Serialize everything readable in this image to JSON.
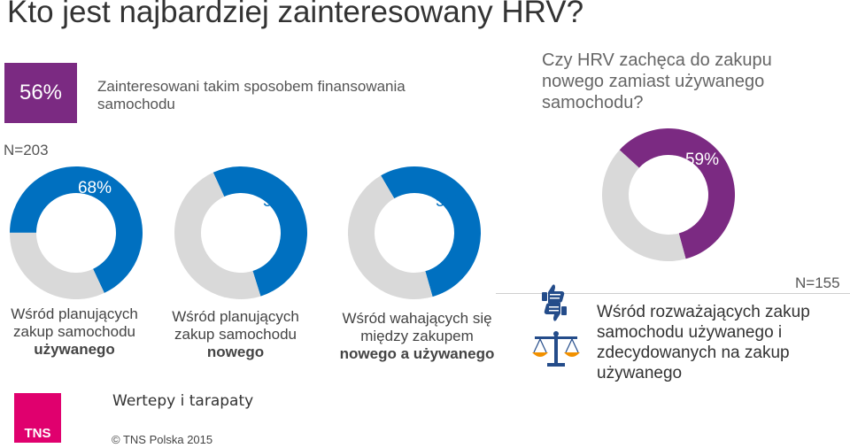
{
  "title": "Kto jest najbardziej zainteresowany HRV?",
  "badge": {
    "value": "56%",
    "text": "Zainteresowani takim sposobem finansowania samochodu"
  },
  "question": "Czy HRV zachęca do zakupu nowego zamiast używanego samochodu?",
  "n_left": "N=203",
  "n_right": "N=155",
  "captions": {
    "c1_line1": "Wśród planujących zakup samochodu",
    "c1_bold": "używanego",
    "c2_line1": "Wśród planujących zakup samochodu",
    "c2_bold": "nowego",
    "c3_line1": "Wśród wahających się między zakupem",
    "c3_bold": "nowego a używanego",
    "c4": "Wśród rozważających zakup samochodu używanego i zdecydowanych na zakup używanego"
  },
  "subtitle": "Wertepy i tarapaty",
  "copyright": "© TNS Polska 2015",
  "logo": "TNS",
  "colors": {
    "blue": "#0070C0",
    "purple": "#7B2A82",
    "grey": "#D9D9D9",
    "pink": "#E0006E"
  },
  "icons": [
    "thumbs-up-down-icon",
    "scales-icon"
  ],
  "chart_data": [
    {
      "type": "pie",
      "donut": true,
      "values": [
        68,
        32
      ],
      "label": "68%",
      "colors": [
        "#0070C0",
        "#D9D9D9"
      ]
    },
    {
      "type": "pie",
      "donut": true,
      "values": [
        52,
        48
      ],
      "label": "52%",
      "colors": [
        "#0070C0",
        "#D9D9D9"
      ]
    },
    {
      "type": "pie",
      "donut": true,
      "values": [
        54,
        46
      ],
      "label": "54%",
      "colors": [
        "#0070C0",
        "#D9D9D9"
      ]
    },
    {
      "type": "pie",
      "donut": true,
      "values": [
        59,
        41
      ],
      "label": "59%",
      "colors": [
        "#7B2A82",
        "#D9D9D9"
      ]
    }
  ]
}
